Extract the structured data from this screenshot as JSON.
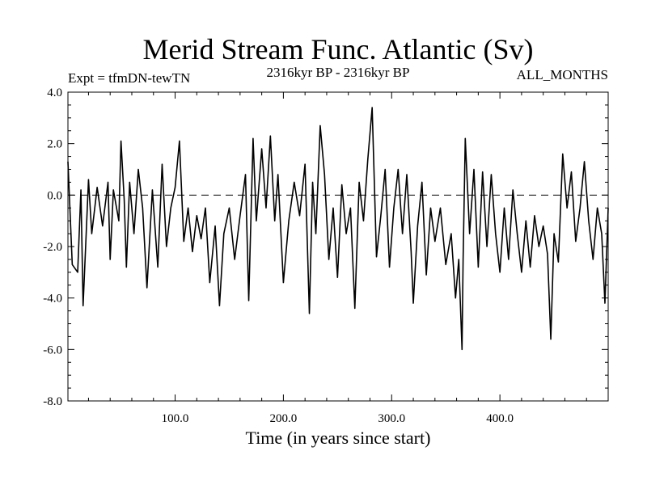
{
  "chart_data": {
    "type": "line",
    "title": "Merid Stream Func. Atlantic (Sv)",
    "subtitle_left": "Expt = tfmDN-tewTN",
    "subtitle_center": "2316kyr BP - 2316kyr BP",
    "subtitle_right": "ALL_MONTHS",
    "xlabel": "Time (in years since start)",
    "ylabel": "",
    "xlim": [
      1,
      500
    ],
    "ylim": [
      -8.0,
      4.0
    ],
    "x_ticks": [
      100,
      200,
      300,
      400
    ],
    "x_tick_labels": [
      "100.0",
      "200.0",
      "300.0",
      "400.0"
    ],
    "y_ticks": [
      4,
      2,
      0,
      -2,
      -4,
      -6,
      -8
    ],
    "y_tick_labels": [
      "4.0",
      "2.0",
      "0.0",
      "-2.0",
      "-4.0",
      "-6.0",
      "-8.0"
    ],
    "reference_line": {
      "y": 0.0,
      "style": "dashed"
    },
    "series": [
      {
        "name": "Merid Stream Func. Atlantic",
        "x": [
          1,
          5,
          10,
          13,
          15,
          20,
          23,
          28,
          33,
          38,
          40,
          43,
          48,
          50,
          53,
          55,
          58,
          62,
          66,
          70,
          74,
          79,
          84,
          88,
          92,
          96,
          100,
          104,
          108,
          112,
          116,
          120,
          124,
          128,
          132,
          137,
          141,
          145,
          150,
          155,
          160,
          165,
          168,
          172,
          175,
          180,
          184,
          188,
          192,
          195,
          200,
          205,
          210,
          215,
          220,
          224,
          227,
          230,
          234,
          238,
          242,
          246,
          250,
          254,
          258,
          262,
          266,
          270,
          274,
          278,
          282,
          286,
          290,
          294,
          298,
          302,
          306,
          310,
          314,
          318,
          320,
          324,
          328,
          332,
          336,
          340,
          345,
          350,
          355,
          359,
          362,
          365,
          366,
          368,
          372,
          376,
          380,
          384,
          388,
          392,
          396,
          400,
          404,
          408,
          412,
          416,
          420,
          424,
          428,
          432,
          436,
          440,
          444,
          447,
          450,
          454,
          458,
          462,
          466,
          470,
          474,
          478,
          482,
          486,
          490,
          494,
          497,
          500
        ],
        "values": [
          1.3,
          -2.7,
          -3.0,
          0.2,
          -4.3,
          0.6,
          -1.5,
          0.3,
          -1.2,
          0.5,
          -2.5,
          0.2,
          -1.0,
          2.1,
          -0.2,
          -2.8,
          0.5,
          -1.5,
          1.0,
          -0.5,
          -3.6,
          0.2,
          -2.8,
          1.2,
          -2.0,
          -0.5,
          0.3,
          2.1,
          -1.8,
          -0.5,
          -2.2,
          -0.8,
          -1.7,
          -0.5,
          -3.4,
          -1.2,
          -4.3,
          -1.5,
          -0.5,
          -2.5,
          -0.8,
          0.8,
          -4.1,
          2.2,
          -1.0,
          1.8,
          -0.5,
          2.3,
          -1.0,
          0.8,
          -3.4,
          -1.0,
          0.5,
          -0.8,
          1.2,
          -4.6,
          0.5,
          -1.5,
          2.7,
          0.8,
          -2.5,
          -0.5,
          -3.2,
          0.4,
          -1.5,
          -0.5,
          -4.4,
          0.5,
          -1.0,
          1.4,
          3.4,
          -2.4,
          -0.8,
          1.0,
          -2.8,
          -0.5,
          1.0,
          -1.5,
          0.8,
          -2.2,
          -4.2,
          -1.2,
          0.5,
          -3.1,
          -0.5,
          -1.8,
          -0.5,
          -2.7,
          -1.5,
          -4.0,
          -2.5,
          -6.0,
          -2.5,
          2.2,
          -1.5,
          1.0,
          -2.8,
          0.9,
          -2.0,
          0.8,
          -1.5,
          -3.0,
          -0.5,
          -2.5,
          0.2,
          -1.5,
          -3.0,
          -1.0,
          -2.8,
          -0.8,
          -2.0,
          -1.2,
          -2.3,
          -5.6,
          -1.5,
          -2.6,
          1.6,
          -0.5,
          0.9,
          -1.8,
          -0.5,
          1.3,
          -1.0,
          -2.5,
          -0.5,
          -1.5,
          -4.2,
          -0.5
        ]
      }
    ]
  }
}
